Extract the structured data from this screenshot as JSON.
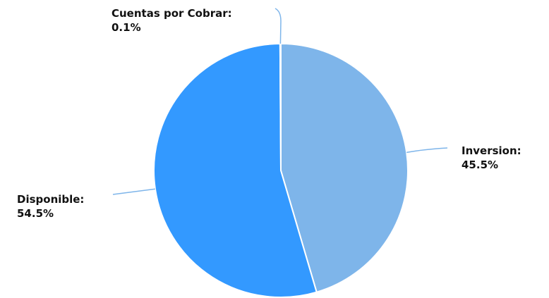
{
  "chart_data": {
    "type": "pie",
    "title": "",
    "slices": [
      {
        "label": "Inversion",
        "value": 45.5,
        "display": "45.5%",
        "color": "#7eb5ea"
      },
      {
        "label": "Disponible",
        "value": 54.5,
        "display": "54.5%",
        "color": "#3399ff"
      },
      {
        "label": "Cuentas por Cobrar",
        "value": 0.1,
        "display": "0.1%",
        "color": "#ffffff"
      }
    ],
    "start_angle_deg": 0,
    "direction": "clockwise",
    "legend": "none",
    "label_style": "callout",
    "connector_color": "#7eb5ea"
  }
}
